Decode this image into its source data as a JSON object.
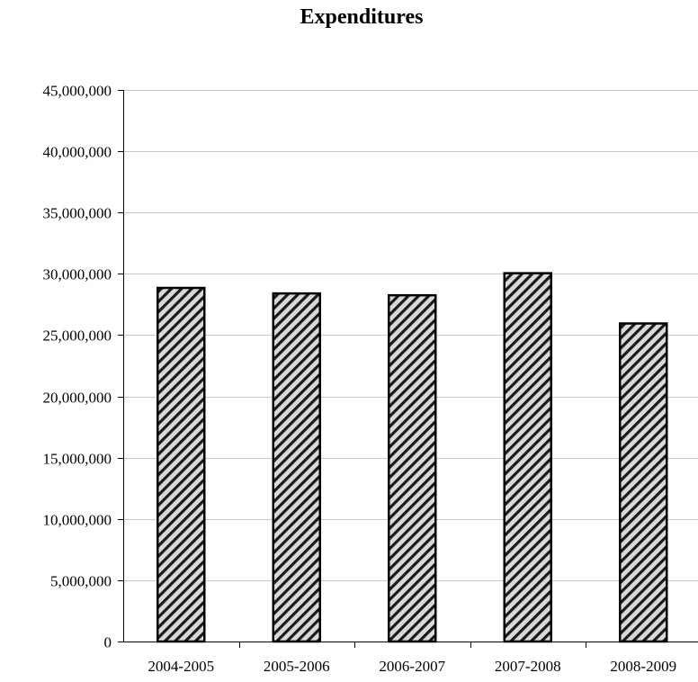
{
  "chart_data": {
    "type": "bar",
    "title": "Expenditures",
    "xlabel": "",
    "ylabel": "",
    "categories": [
      "2004-2005",
      "2005-2006",
      "2006-2007",
      "2007-2008",
      "2008-2009"
    ],
    "values": [
      28850000,
      28400000,
      28250000,
      30050000,
      25950000
    ],
    "ylim": [
      0,
      45000000
    ],
    "yticks": [
      0,
      5000000,
      10000000,
      15000000,
      20000000,
      25000000,
      30000000,
      35000000,
      40000000,
      45000000
    ],
    "ytick_labels": [
      "0",
      "5,000,000",
      "10,000,000",
      "15,000,000",
      "20,000,000",
      "25,000,000",
      "30,000,000",
      "35,000,000",
      "40,000,000",
      "45,000,000"
    ],
    "grid": true,
    "legend": "none",
    "bar_pattern": "diagonal-hatch",
    "colors": {
      "bar_fill_light": "#d9d9d9",
      "bar_fill_dark": "#1a1a1a",
      "bar_stroke": "#000000",
      "gridline": "#c8c8c8",
      "axis": "#000000"
    }
  }
}
